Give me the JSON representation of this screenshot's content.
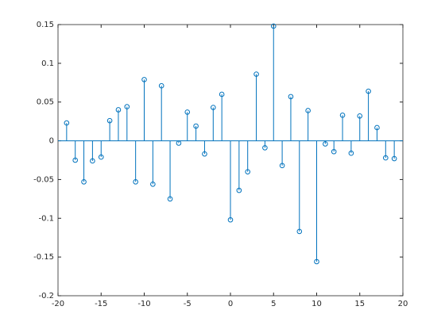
{
  "chart_data": {
    "type": "stem",
    "x": [
      -19,
      -18,
      -17,
      -16,
      -15,
      -14,
      -13,
      -12,
      -11,
      -10,
      -9,
      -8,
      -7,
      -6,
      -5,
      -4,
      -3,
      -2,
      -1,
      0,
      1,
      2,
      3,
      4,
      5,
      6,
      7,
      8,
      9,
      10,
      11,
      12,
      13,
      14,
      15,
      16,
      17,
      18,
      19
    ],
    "values": [
      0.023,
      -0.025,
      -0.053,
      -0.026,
      -0.021,
      0.026,
      0.04,
      0.044,
      -0.053,
      0.079,
      -0.056,
      0.071,
      -0.075,
      -0.003,
      0.037,
      0.019,
      -0.017,
      0.043,
      0.06,
      -0.102,
      -0.064,
      -0.04,
      0.086,
      -0.009,
      0.148,
      -0.032,
      0.057,
      -0.117,
      0.039,
      -0.156,
      -0.004,
      -0.014,
      0.033,
      -0.016,
      0.032,
      0.064,
      0.017,
      -0.022,
      -0.023
    ],
    "color": "#0072bd",
    "xlim": [
      -20,
      20
    ],
    "xticks": [
      -20,
      -15,
      -10,
      -5,
      0,
      5,
      10,
      15,
      20
    ],
    "ylim": [
      -0.2,
      0.15
    ],
    "yticks": [
      -0.2,
      -0.15,
      -0.1,
      -0.05,
      0,
      0.05,
      0.1,
      0.15
    ]
  }
}
